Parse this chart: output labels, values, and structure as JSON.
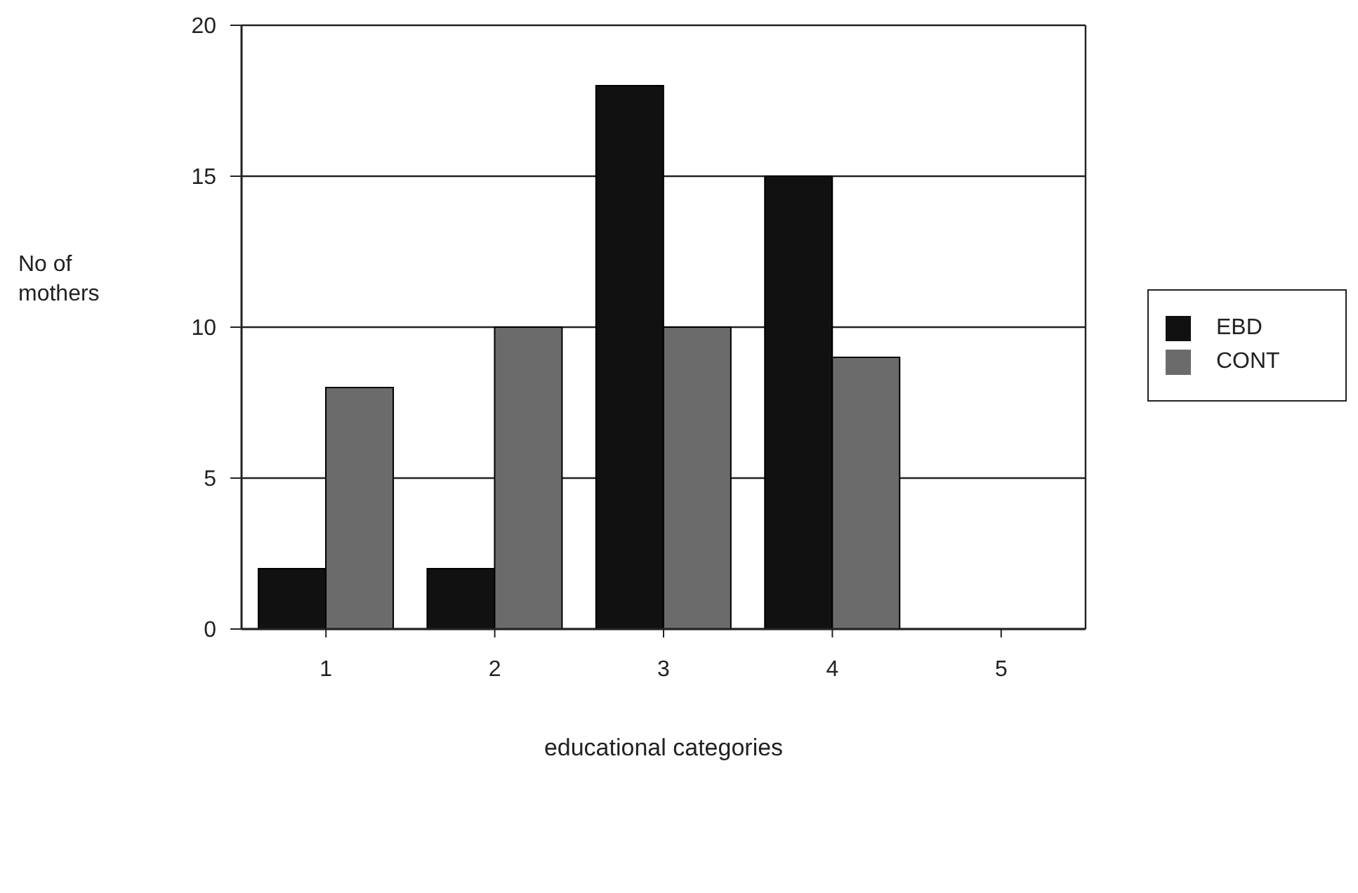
{
  "chart_data": {
    "type": "bar",
    "xlabel": "educational categories",
    "ylabel": "No of mothers",
    "categories": [
      "1",
      "2",
      "3",
      "4",
      "5"
    ],
    "series": [
      {
        "name": "EBD",
        "color": "#111111",
        "values": [
          2,
          2,
          18,
          15,
          null
        ]
      },
      {
        "name": "CONT",
        "color": "#6b6b6b",
        "values": [
          8,
          10,
          10,
          9,
          null
        ]
      }
    ],
    "ylim": [
      0,
      20
    ],
    "yticks": [
      0,
      5,
      10,
      15,
      20
    ],
    "grid": "y",
    "legend": "right"
  }
}
